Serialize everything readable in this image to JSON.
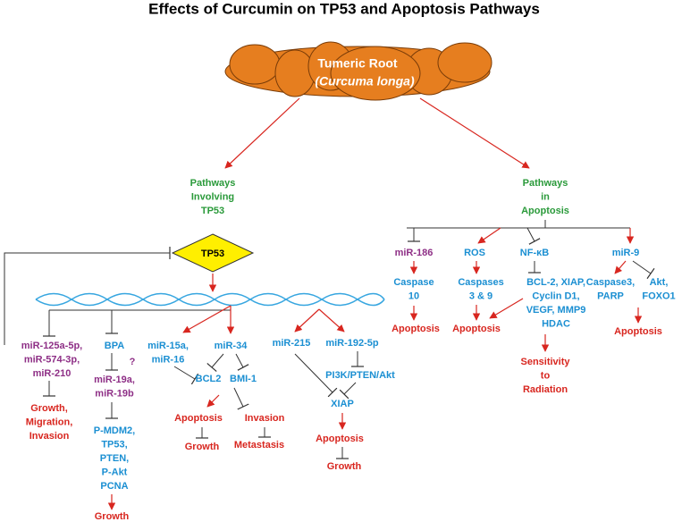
{
  "title": "Effects of Curcumin on TP53 and Apoptosis Pathways",
  "root": {
    "name": "Tumeric Root",
    "latin": "(Curcuma longa)"
  },
  "pathways": [
    {
      "lines": [
        "Pathways",
        "Involving",
        "TP53"
      ]
    },
    {
      "lines": [
        "Pathways",
        "in",
        "Apoptosis"
      ]
    }
  ],
  "tp53": "TP53",
  "nodes": [
    {
      "lines": [
        "miR-125a-5p,",
        "miR-574-3p,",
        "miR-210"
      ]
    },
    {
      "lines": [
        "Growth,",
        "Migration,",
        "Invasion"
      ]
    },
    {
      "lines": [
        "BPA"
      ]
    },
    {
      "lines": [
        "?"
      ]
    },
    {
      "lines": [
        "miR-19a,",
        "miR-19b"
      ]
    },
    {
      "lines": [
        "P-MDM2,",
        "TP53,",
        "PTEN,",
        "P-Akt",
        "PCNA"
      ]
    },
    {
      "lines": [
        "Growth"
      ]
    },
    {
      "lines": [
        "miR-15a,",
        "miR-16"
      ]
    },
    {
      "lines": [
        "miR-34"
      ]
    },
    {
      "lines": [
        "BCL2"
      ]
    },
    {
      "lines": [
        "BMI-1"
      ]
    },
    {
      "lines": [
        "Apoptosis"
      ]
    },
    {
      "lines": [
        "Growth"
      ]
    },
    {
      "lines": [
        "Invasion"
      ]
    },
    {
      "lines": [
        "Metastasis"
      ]
    },
    {
      "lines": [
        "miR-215"
      ]
    },
    {
      "lines": [
        "miR-192-5p"
      ]
    },
    {
      "lines": [
        "PI3K/PTEN/Akt"
      ]
    },
    {
      "lines": [
        "XIAP"
      ]
    },
    {
      "lines": [
        "Apoptosis"
      ]
    },
    {
      "lines": [
        "Growth"
      ]
    },
    {
      "lines": [
        "miR-186"
      ]
    },
    {
      "lines": [
        "Caspase",
        "10"
      ]
    },
    {
      "lines": [
        "Apoptosis"
      ]
    },
    {
      "lines": [
        "ROS"
      ]
    },
    {
      "lines": [
        "Caspases",
        "3 & 9"
      ]
    },
    {
      "lines": [
        "Apoptosis"
      ]
    },
    {
      "lines": [
        "NF-κB"
      ]
    },
    {
      "lines": [
        "BCL-2, XIAP,",
        "Cyclin D1,",
        "VEGF, MMP9",
        "HDAC"
      ]
    },
    {
      "lines": [
        "Sensitivity",
        "to",
        "Radiation"
      ]
    },
    {
      "lines": [
        "miR-9"
      ]
    },
    {
      "lines": [
        "Caspase3,",
        "PARP"
      ]
    },
    {
      "lines": [
        "Akt,",
        "FOXO1"
      ]
    },
    {
      "lines": [
        "Apoptosis"
      ]
    }
  ]
}
